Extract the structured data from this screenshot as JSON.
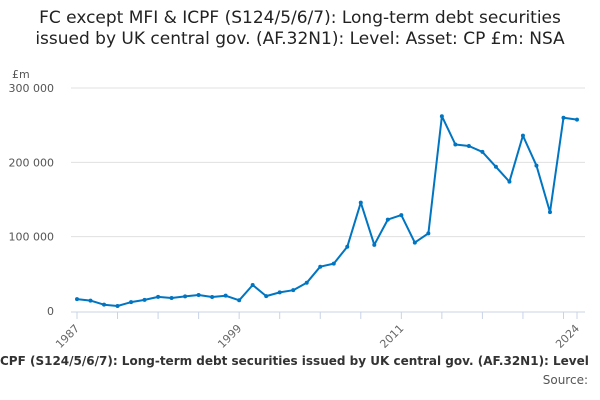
{
  "chart_data": {
    "type": "line",
    "title": "FC except MFI & ICPF (S124/5/6/7): Long-term debt securities issued by UK central gov. (AF.32N1): Level: Asset: CP £m: NSA",
    "ylabel": "£m",
    "xlabel": "",
    "ylim": [
      0,
      300000
    ],
    "yticks": [
      0,
      100000,
      200000,
      300000
    ],
    "ytick_labels": [
      "0",
      "100 000",
      "200 000",
      "300 000"
    ],
    "xtick_labels": [
      "1987",
      "1999",
      "2011",
      "2024"
    ],
    "grid": true,
    "color": "#0075c2",
    "x": [
      1987,
      1988,
      1989,
      1990,
      1991,
      1992,
      1993,
      1994,
      1995,
      1996,
      1997,
      1998,
      1999,
      2000,
      2001,
      2002,
      2003,
      2004,
      2005,
      2006,
      2007,
      2008,
      2009,
      2010,
      2011,
      2012,
      2013,
      2014,
      2015,
      2016,
      2017,
      2018,
      2019,
      2020,
      2021,
      2022,
      2023,
      2024
    ],
    "values": [
      16000,
      14000,
      8500,
      6700,
      12000,
      15000,
      19000,
      17500,
      19700,
      21500,
      18800,
      20600,
      14400,
      35000,
      20000,
      25000,
      28000,
      38000,
      59600,
      63700,
      86500,
      145800,
      89000,
      123000,
      129000,
      92000,
      104500,
      262000,
      224000,
      222000,
      214000,
      194000,
      174000,
      236000,
      195500,
      133000,
      260000,
      257500
    ]
  },
  "footer": {
    "caption": "CPF (S124/5/6/7): Long-term debt securities issued by UK central gov. (AF.32N1): Level",
    "source": "Source:"
  }
}
